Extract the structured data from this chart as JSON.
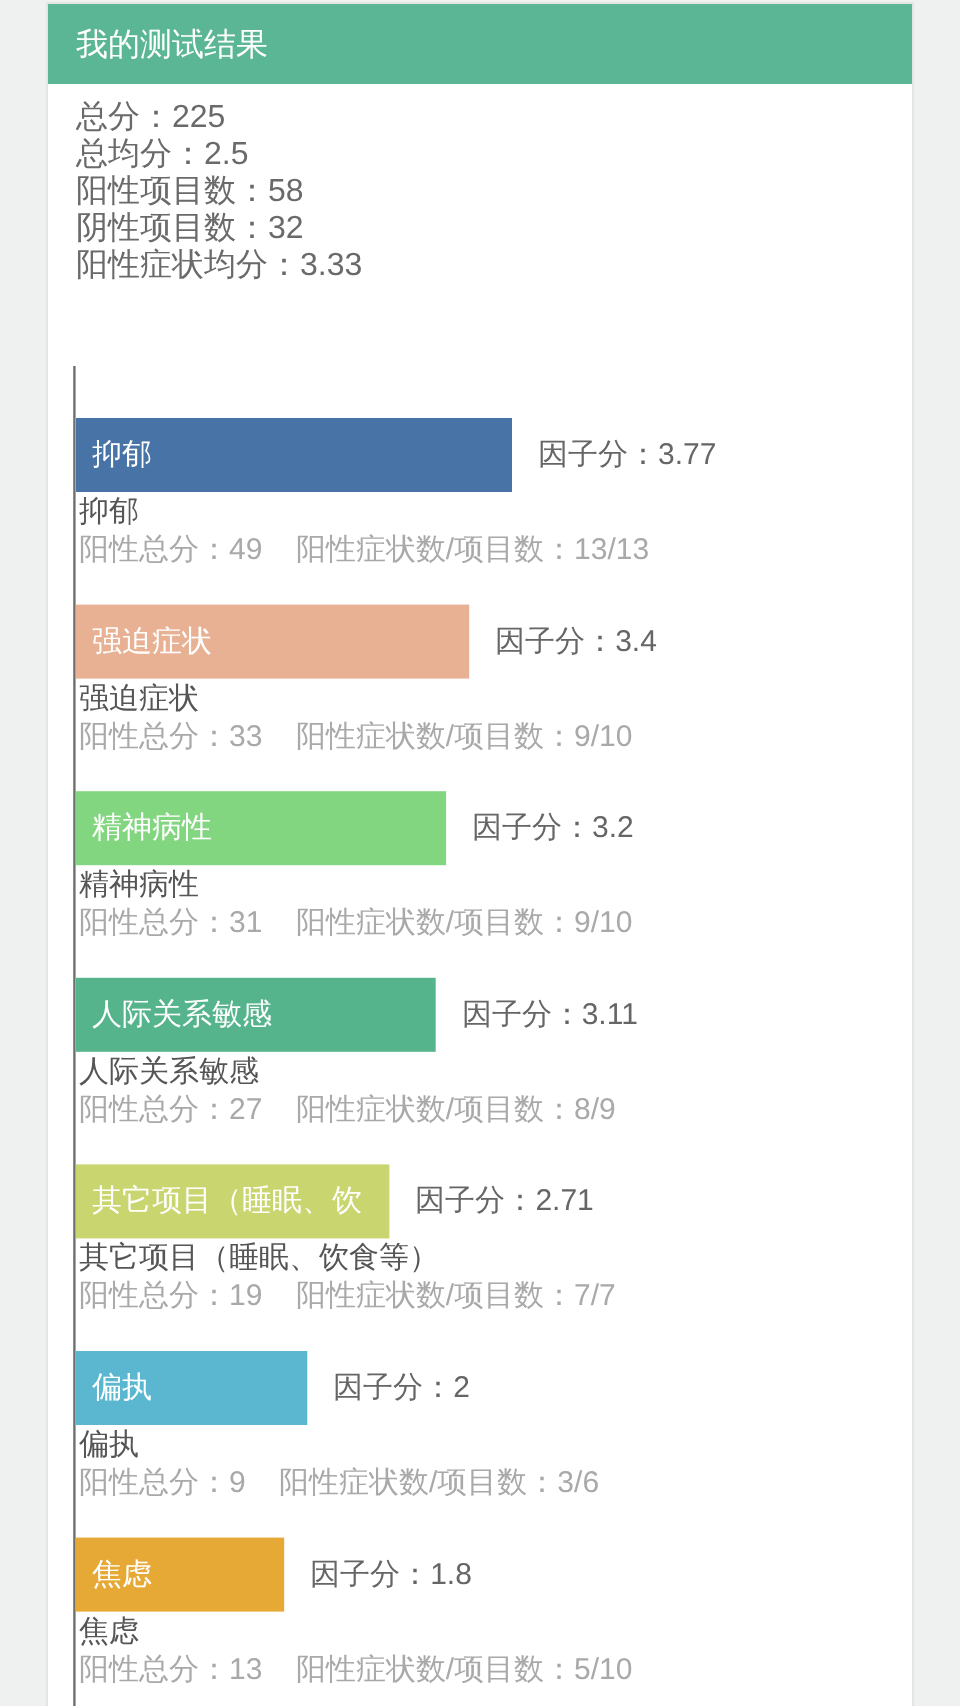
{
  "chart_data": {
    "type": "bar",
    "orientation": "horizontal",
    "title": "我的测试结果",
    "categories": [
      "抑郁",
      "强迫症状",
      "精神病性",
      "人际关系敏感",
      "其它项目（睡眠、饮食等）",
      "偏执",
      "焦虑"
    ],
    "values": [
      3.77,
      3.4,
      3.2,
      3.11,
      2.71,
      2,
      1.8
    ],
    "colors": [
      "#4873a6",
      "#e8b193",
      "#82d67f",
      "#55b48c",
      "#c9d56f",
      "#5bb6d0",
      "#e6a935"
    ],
    "value_labels": [
      "因子分：3.77",
      "因子分：3.4",
      "因子分：3.2",
      "因子分：3.11",
      "因子分：2.71",
      "因子分：2",
      "因子分：1.8"
    ],
    "annotations": [
      "总分：225",
      "总均分：2.5",
      "阳性项目数：58",
      "阴性项目数：32",
      "阳性症状均分：3.33",
      "抑郁",
      "阳性总分：49    阳性症状数/项目数：13/13",
      "强迫症状",
      "阳性总分：33    阳性症状数/项目数：9/10",
      "精神病性",
      "阳性总分：31    阳性症状数/项目数：9/10",
      "人际关系敏感",
      "阳性总分：27    阳性症状数/项目数：8/9",
      "其它项目（睡眠、饮",
      "阳性总分：19    阳性症状数/项目数：7/7",
      "偏执",
      "阳性总分：9    阳性症状数/项目数：3/6",
      "焦虑",
      "阳性总分：13    阳性症状数/项目数：5/10"
    ]
  }
}
